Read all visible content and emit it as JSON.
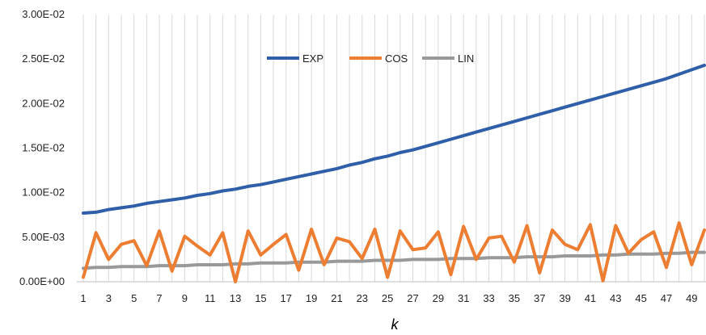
{
  "chart_data": {
    "type": "line",
    "xlabel": "k",
    "ylabel": "",
    "ylim": [
      0,
      0.03
    ],
    "y_ticks": [
      "0.00E+00",
      "5.00E-03",
      "1.00E-02",
      "1.50E-02",
      "2.00E-02",
      "2.50E-02",
      "3.00E-02"
    ],
    "x": [
      1,
      2,
      3,
      4,
      5,
      6,
      7,
      8,
      9,
      10,
      11,
      12,
      13,
      14,
      15,
      16,
      17,
      18,
      19,
      20,
      21,
      22,
      23,
      24,
      25,
      26,
      27,
      28,
      29,
      30,
      31,
      32,
      33,
      34,
      35,
      36,
      37,
      38,
      39,
      40,
      41,
      42,
      43,
      44,
      45,
      46,
      47,
      48,
      49,
      50
    ],
    "x_tick_labels": [
      "1",
      "3",
      "5",
      "7",
      "9",
      "11",
      "13",
      "15",
      "17",
      "19",
      "21",
      "23",
      "25",
      "27",
      "29",
      "31",
      "33",
      "35",
      "37",
      "39",
      "41",
      "43",
      "45",
      "47",
      "49"
    ],
    "grid": "vertical",
    "legend_position": "top-center",
    "series": [
      {
        "name": "EXP",
        "color": "#2e5fa8",
        "values": [
          0.0077,
          0.0078,
          0.0081,
          0.0083,
          0.0085,
          0.0088,
          0.009,
          0.0092,
          0.0094,
          0.0097,
          0.0099,
          0.0102,
          0.0104,
          0.0107,
          0.0109,
          0.0112,
          0.0115,
          0.0118,
          0.0121,
          0.0124,
          0.0127,
          0.0131,
          0.0134,
          0.0138,
          0.0141,
          0.0145,
          0.0148,
          0.0152,
          0.0156,
          0.016,
          0.0164,
          0.0168,
          0.0172,
          0.0176,
          0.018,
          0.0184,
          0.0188,
          0.0192,
          0.0196,
          0.02,
          0.0204,
          0.0208,
          0.0212,
          0.0216,
          0.022,
          0.0224,
          0.0228,
          0.0233,
          0.0238,
          0.0243
        ]
      },
      {
        "name": "COS",
        "color": "#ed7d31",
        "values": [
          0.0005,
          0.0055,
          0.0025,
          0.0042,
          0.0046,
          0.0018,
          0.0057,
          0.0012,
          0.0051,
          0.004,
          0.003,
          0.0055,
          0.0,
          0.0057,
          0.003,
          0.0042,
          0.0053,
          0.0013,
          0.0059,
          0.0019,
          0.0049,
          0.0045,
          0.0026,
          0.0059,
          0.0005,
          0.0057,
          0.0036,
          0.0038,
          0.0056,
          0.0008,
          0.0062,
          0.0025,
          0.0049,
          0.0051,
          0.0022,
          0.0063,
          0.001,
          0.0058,
          0.0042,
          0.0036,
          0.0064,
          0.0001,
          0.0063,
          0.0032,
          0.0047,
          0.0056,
          0.0016,
          0.0066,
          0.0019,
          0.0058
        ]
      },
      {
        "name": "LIN",
        "color": "#999999",
        "values": [
          0.0015,
          0.0016,
          0.0016,
          0.0017,
          0.0017,
          0.0017,
          0.0018,
          0.0018,
          0.0018,
          0.0019,
          0.0019,
          0.0019,
          0.002,
          0.002,
          0.0021,
          0.0021,
          0.0021,
          0.0022,
          0.0022,
          0.0022,
          0.0023,
          0.0023,
          0.0023,
          0.0024,
          0.0024,
          0.0024,
          0.0025,
          0.0025,
          0.0025,
          0.0026,
          0.0026,
          0.0026,
          0.0027,
          0.0027,
          0.0027,
          0.0028,
          0.0028,
          0.0028,
          0.0029,
          0.0029,
          0.0029,
          0.003,
          0.003,
          0.0031,
          0.0031,
          0.0031,
          0.0032,
          0.0032,
          0.0033,
          0.0033
        ]
      }
    ]
  }
}
